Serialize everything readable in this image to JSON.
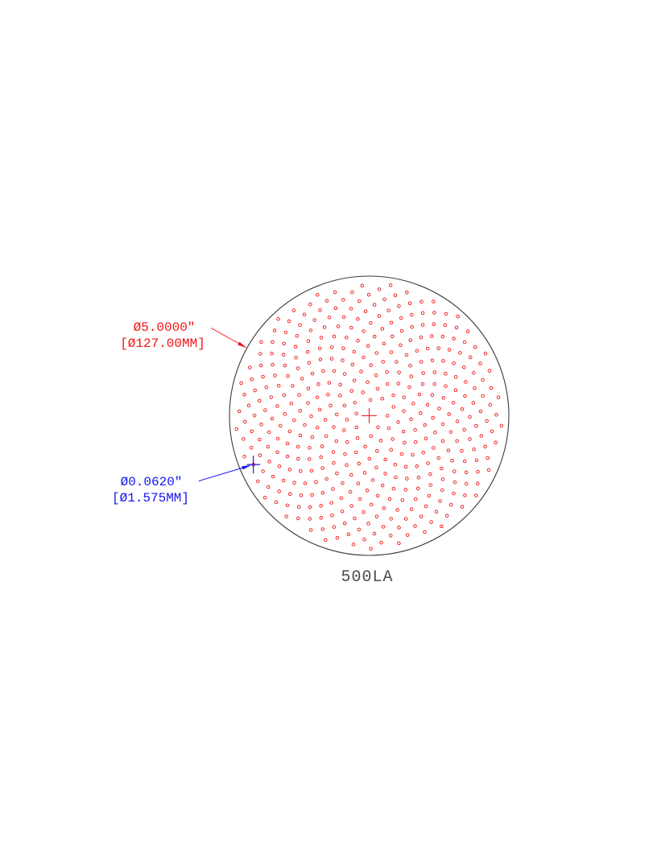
{
  "drawing": {
    "part_label": "500LA",
    "outer_dimension": {
      "line1": "Ø5.0000″",
      "line2": "[Ø127.00MM]"
    },
    "hole_dimension": {
      "line1": "Ø0.0620″",
      "line2": "[Ø1.575MM]"
    },
    "colors": {
      "dimension_red": "#f01414",
      "dimension_blue": "#1414f0",
      "hole_red": "#f01414",
      "disc_outline": "#3d3d3d",
      "part_label_text": "#4a4a4a"
    },
    "pattern": {
      "type": "phyllotaxis-spiral-hole-pattern",
      "hole_count": 421,
      "golden_angle_deg": 137.50776,
      "radial_scale": 8.05,
      "index_start": 4,
      "index_end": 424,
      "rotation_rad": 0.35,
      "chirality": -1
    }
  }
}
